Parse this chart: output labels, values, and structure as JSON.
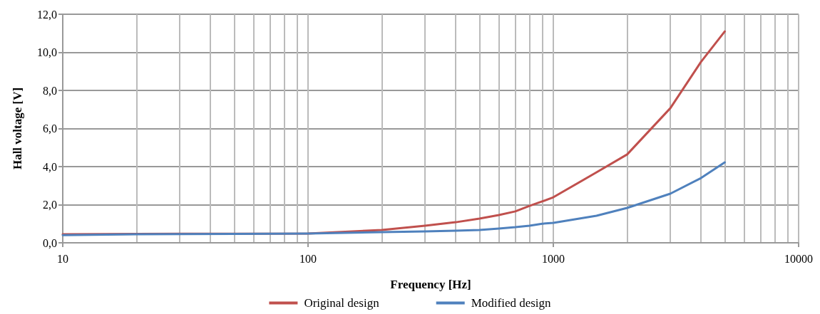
{
  "chart_data": {
    "type": "line",
    "xlabel": "Frequency [Hz]",
    "ylabel": "Hall voltage [V]",
    "log": "x",
    "x": [
      10,
      20,
      50,
      100,
      200,
      300,
      400,
      500,
      600,
      700,
      800,
      900,
      1000,
      1500,
      2000,
      3000,
      4000,
      5000
    ],
    "series": [
      {
        "name": "Original design",
        "color": "#c0504d",
        "values": [
          0.45,
          0.47,
          0.48,
          0.49,
          0.67,
          0.9,
          1.08,
          1.27,
          1.46,
          1.65,
          1.94,
          2.17,
          2.39,
          3.7,
          4.64,
          7.07,
          9.5,
          11.1
        ]
      },
      {
        "name": "Modified design",
        "color": "#4f81bd",
        "values": [
          0.4,
          0.45,
          0.47,
          0.49,
          0.56,
          0.6,
          0.64,
          0.67,
          0.75,
          0.82,
          0.9,
          1.0,
          1.05,
          1.42,
          1.83,
          2.58,
          3.4,
          4.22
        ]
      }
    ],
    "xlim": [
      10,
      10000
    ],
    "xticks": [
      10,
      100,
      1000,
      10000
    ],
    "ylim": [
      0,
      12
    ],
    "yticks": [
      {
        "value": 0,
        "label": "0,0"
      },
      {
        "value": 2,
        "label": "2,0"
      },
      {
        "value": 4,
        "label": "4,0"
      },
      {
        "value": 6,
        "label": "6,0"
      },
      {
        "value": 8,
        "label": "8,0"
      },
      {
        "value": 10,
        "label": "10,0"
      },
      {
        "value": 12,
        "label": "12,0"
      }
    ],
    "grid": true,
    "legend": "bottom",
    "marker": "none",
    "line_style": "solid"
  }
}
